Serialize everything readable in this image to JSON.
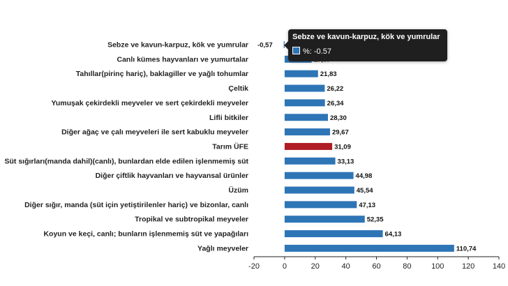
{
  "chart_data": {
    "type": "bar",
    "orientation": "horizontal",
    "categories": [
      "Sebze ve kavun-karpuz, kök ve yumrular",
      "Canlı kümes hayvanları ve yumurtalar",
      "Tahıllar(pirinç hariç), baklagiller ve yağlı tohumlar",
      "Çeltik",
      "Yumuşak çekirdekli meyveler ve sert çekirdekli meyveler",
      "Lifli bitkiler",
      "Diğer ağaç ve çalı meyveleri ile sert kabuklu meyveler",
      "Tarım ÜFE",
      "Süt sığırları(manda dahil)(canlı), bunlardan elde edilen işlenmemiş süt",
      "Diğer çiftlik hayvanları ve hayvansal ürünler",
      "Üzüm",
      "Diğer sığır, manda (süt için yetiştirilenler hariç) ve bizonlar, canlı",
      "Tropikal ve subtropikal meyveler",
      "Koyun ve keçi, canlı; bunların işlenmemiş süt ve yapağıları",
      "Yağlı meyveler"
    ],
    "values": [
      -0.57,
      17.67,
      21.83,
      26.22,
      26.34,
      28.3,
      29.67,
      31.09,
      33.13,
      44.98,
      45.54,
      47.13,
      52.35,
      64.13,
      110.74
    ],
    "value_labels": [
      "-0,57",
      "17,67",
      "21,83",
      "26,22",
      "26,34",
      "28,30",
      "29,67",
      "31,09",
      "33,13",
      "44,98",
      "45,54",
      "47,13",
      "52,35",
      "64,13",
      "110,74"
    ],
    "highlight_category": "Tarım ÜFE",
    "colors": {
      "bar": "#2e75b6",
      "highlight": "#b01c24",
      "axis": "#222222"
    },
    "xlim": [
      -20,
      140
    ],
    "xticks": [
      -20,
      0,
      20,
      40,
      60,
      80,
      100,
      120,
      140
    ],
    "grid": false
  },
  "tooltip": {
    "title": "Sebze ve kavun-karpuz, kök ve yumrular",
    "text": "%: -0.57"
  }
}
